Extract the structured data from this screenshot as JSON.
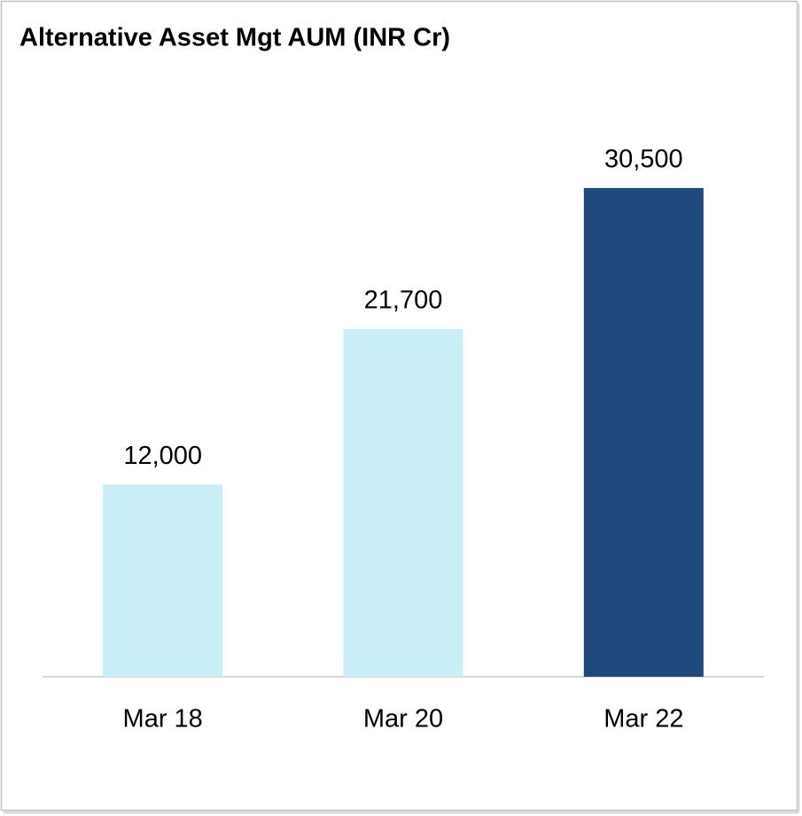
{
  "chart_data": {
    "type": "bar",
    "title": "Alternative Asset Mgt AUM (INR Cr)",
    "categories": [
      "Mar 18",
      "Mar 20",
      "Mar 22"
    ],
    "values": [
      12000,
      21700,
      30500
    ],
    "value_labels": [
      "12,000",
      "21,700",
      "30,500"
    ],
    "colors": [
      "#c9eef7",
      "#c9eef7",
      "#1f497d"
    ]
  }
}
